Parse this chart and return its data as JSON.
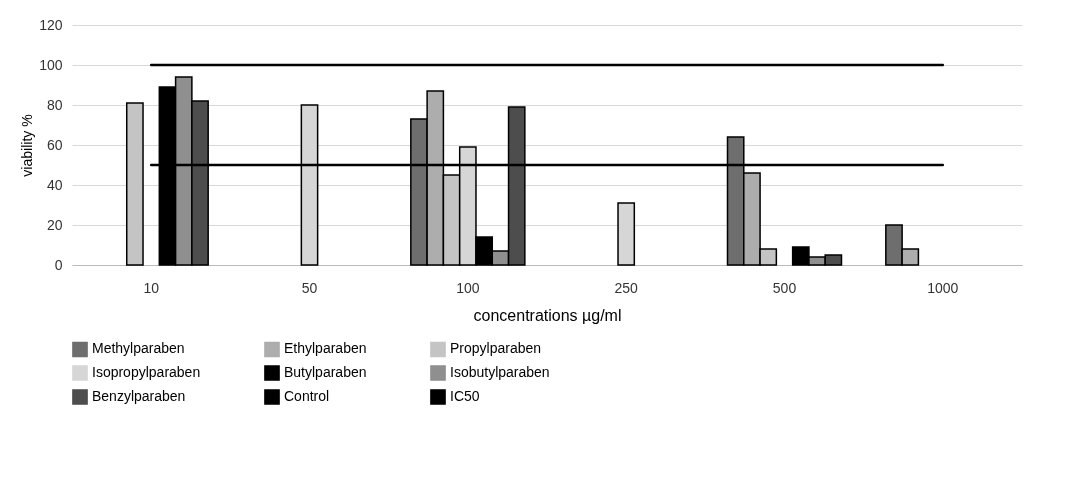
{
  "chart_data": {
    "type": "bar",
    "xlabel": "concentrations µg/ml",
    "ylabel": "viability %",
    "categories": [
      "10",
      "50",
      "100",
      "250",
      "500",
      "1000"
    ],
    "series": [
      {
        "name": "Methylparaben",
        "color": "#6e6e6e",
        "values": [
          null,
          null,
          73,
          null,
          64,
          20
        ]
      },
      {
        "name": "Ethylparaben",
        "color": "#adadad",
        "values": [
          null,
          null,
          87,
          null,
          46,
          8
        ]
      },
      {
        "name": "Propylparaben",
        "color": "#c4c4c4",
        "values": [
          81,
          null,
          45,
          null,
          8,
          null
        ]
      },
      {
        "name": "Isopropylparaben",
        "color": "#d6d6d6",
        "values": [
          null,
          80,
          59,
          31,
          null,
          null
        ]
      },
      {
        "name": "Butylparaben",
        "color": "#000000",
        "values": [
          89,
          null,
          14,
          null,
          9,
          null
        ]
      },
      {
        "name": "Isobutylparaben",
        "color": "#8f8f8f",
        "values": [
          94,
          null,
          7,
          null,
          4,
          null
        ]
      },
      {
        "name": "Benzylparaben",
        "color": "#4d4d4d",
        "values": [
          82,
          null,
          79,
          null,
          5,
          null
        ]
      },
      {
        "name": "Control",
        "type": "line",
        "color": "#000000",
        "values": [
          100,
          100,
          100,
          100,
          100,
          100
        ]
      },
      {
        "name": "IC50",
        "type": "line",
        "color": "#000000",
        "values": [
          50,
          50,
          50,
          50,
          50,
          50
        ]
      }
    ],
    "ylim": [
      0,
      120
    ],
    "yticks": [
      0,
      20,
      40,
      60,
      80,
      100,
      120
    ],
    "grid": "y",
    "legend": "bottom"
  }
}
